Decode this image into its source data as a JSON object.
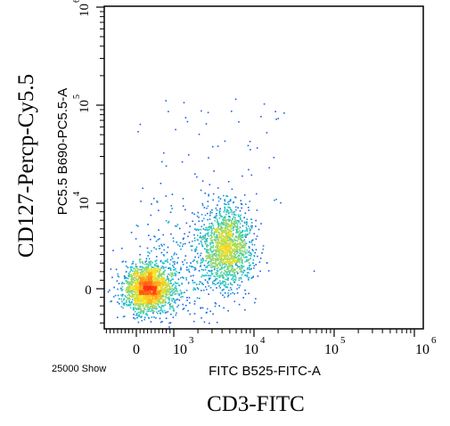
{
  "chart_data": {
    "type": "scatter",
    "plot_style": "flow-cytometry density dot plot (pseudocolor: blue low density to red high density)",
    "event_count_text": "25000 Show",
    "outer_ylabel": "CD127-Percp-Cy5.5",
    "outer_xlabel": "CD3-FITC",
    "xaxis": {
      "label": "FITC B525-FITC-A",
      "scale": "biexponential",
      "linear_region_ticks": [
        "0"
      ],
      "log_decade_ticks": [
        {
          "base": "10",
          "exp": "3"
        },
        {
          "base": "10",
          "exp": "4"
        },
        {
          "base": "10",
          "exp": "5"
        },
        {
          "base": "10",
          "exp": "6"
        }
      ]
    },
    "yaxis": {
      "label": "PC5.5 B690-PC5.5-A",
      "scale": "biexponential",
      "linear_region_ticks": [
        "0"
      ],
      "log_decade_ticks": [
        {
          "base": "10",
          "exp": "4"
        },
        {
          "base": "10",
          "exp": "5"
        },
        {
          "base": "10",
          "exp": "6"
        }
      ]
    },
    "populations": [
      {
        "center": [
          300,
          150
        ],
        "spread_x_decades": 0.15,
        "spread_y_decades": 0.12,
        "share": 0.52
      },
      {
        "center": [
          4500,
          5000
        ],
        "spread_x_decades": 0.16,
        "spread_y_decades": 0.2,
        "share": 0.38
      },
      {
        "center": [
          1500,
          2000
        ],
        "spread_x_decades": 0.35,
        "spread_y_decades": 0.35,
        "share": 0.1
      }
    ],
    "colors": {
      "low": "#1a1aff",
      "mid": "#19c8c8",
      "high": "#ffe31a",
      "peak": "#ff2b14"
    }
  }
}
